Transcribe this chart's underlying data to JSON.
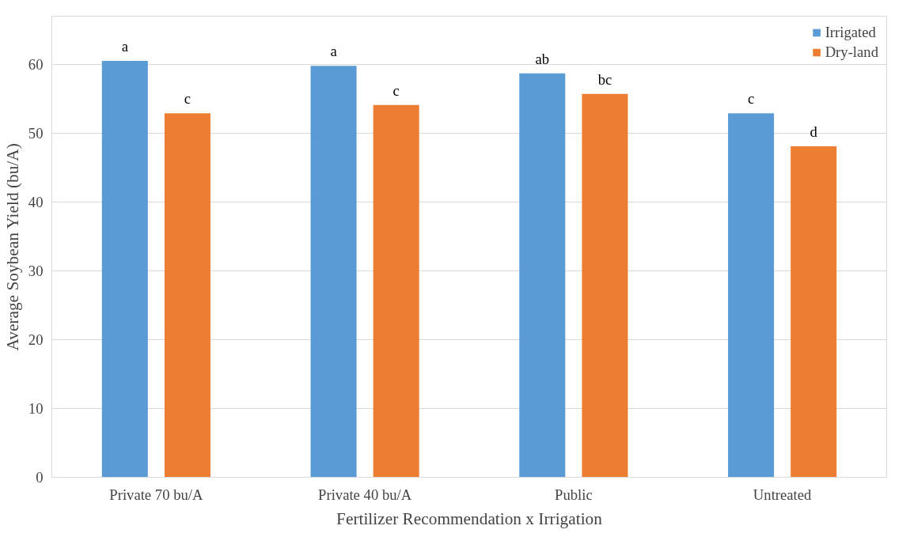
{
  "chart_data": {
    "type": "bar",
    "xlabel": "Fertilizer Recommendation x Irrigation",
    "ylabel": "Average Soybean Yield (bu/A)",
    "categories": [
      "Private 70 bu/A",
      "Private 40 bu/A",
      "Public",
      "Untreated"
    ],
    "series": [
      {
        "name": "Irrigated",
        "color": "#5b9bd5",
        "values": [
          60.5,
          59.8,
          58.7,
          52.9
        ],
        "value_labels": [
          "a",
          "a",
          "ab",
          "c"
        ]
      },
      {
        "name": "Dry-land",
        "color": "#ed7d31",
        "values": [
          52.9,
          54.1,
          55.7,
          48.1
        ],
        "value_labels": [
          "c",
          "c",
          "bc",
          "d"
        ]
      }
    ],
    "ylim": [
      0,
      67
    ],
    "yticks": [
      0,
      10,
      20,
      30,
      40,
      50,
      60
    ],
    "grid": "y",
    "legend": "top right"
  }
}
